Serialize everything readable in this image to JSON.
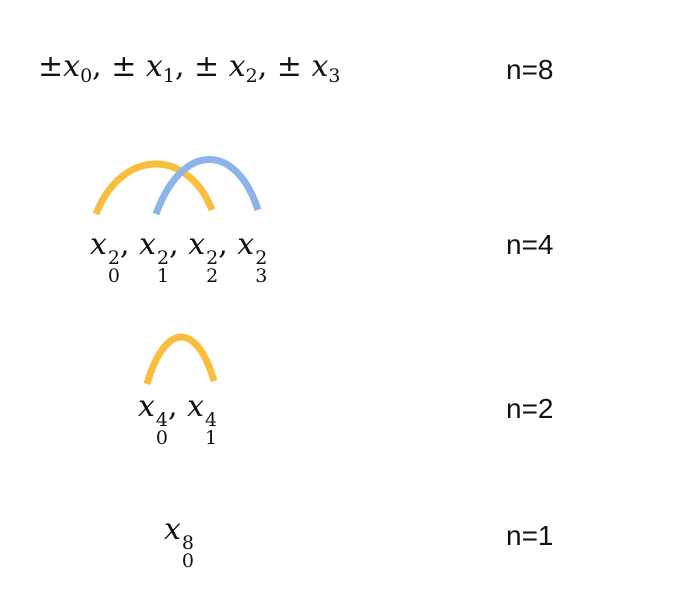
{
  "levels": [
    {
      "label": "n=8"
    },
    {
      "label": "n=4"
    },
    {
      "label": "n=2"
    },
    {
      "label": "n=1"
    }
  ],
  "colors": {
    "orange": "#F9BE3D",
    "blue": "#8DB4E8"
  }
}
